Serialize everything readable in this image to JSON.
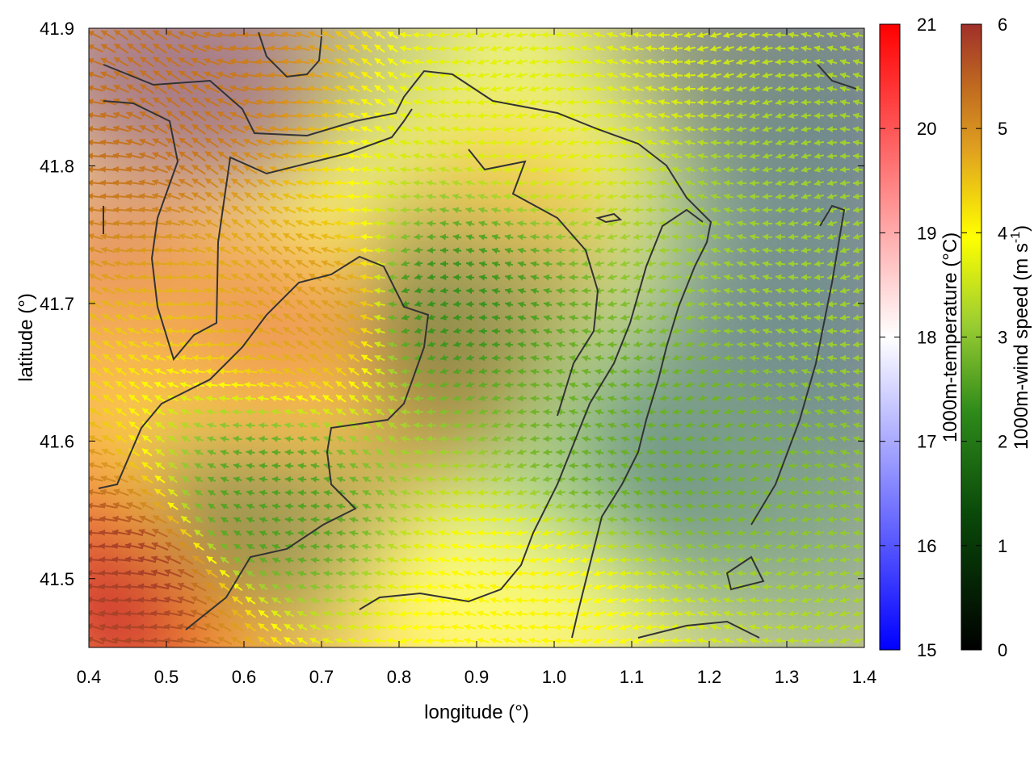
{
  "chart_data": {
    "type": "heatmap",
    "title": "",
    "xlabel": "longitude (°)",
    "ylabel": "latitude (°)",
    "xlim": [
      0.4,
      1.4
    ],
    "ylim": [
      41.45,
      41.9
    ],
    "x_ticks": [
      "0.4",
      "0.5",
      "0.6",
      "0.7",
      "0.8",
      "0.9",
      "1.0",
      "1.1",
      "1.2",
      "1.3",
      "1.4"
    ],
    "y_ticks": [
      "41.5",
      "41.6",
      "41.7",
      "41.8",
      "41.9"
    ],
    "grid": false,
    "temperature_colorbar": {
      "label": "1000m-temperature (°C)",
      "range": [
        15,
        21
      ],
      "ticks": [
        "15",
        "16",
        "17",
        "18",
        "19",
        "20",
        "21"
      ],
      "colors": [
        "#0000ff",
        "#ffffff",
        "#ff0000"
      ]
    },
    "wind_colorbar": {
      "label_main": "1000m-wind speed (m s",
      "label_sup": "-1",
      "label_end": ")",
      "range": [
        0,
        6
      ],
      "ticks": [
        "0",
        "1",
        "2",
        "3",
        "4",
        "5",
        "6"
      ],
      "colors": [
        "#000000",
        "#0a5a0a",
        "#2e8b1a",
        "#9acd32",
        "#ffff00",
        "#e0a020",
        "#c87820",
        "#a0302a"
      ]
    },
    "temperature_field": {
      "description_points": [
        {
          "lon": 0.42,
          "lat": 41.48,
          "temp": 20.3
        },
        {
          "lon": 0.55,
          "lat": 41.7,
          "temp": 19.2
        },
        {
          "lon": 0.7,
          "lat": 41.62,
          "temp": 19.3
        },
        {
          "lon": 0.85,
          "lat": 41.65,
          "temp": 19.6
        },
        {
          "lon": 0.95,
          "lat": 41.75,
          "temp": 19.2
        },
        {
          "lon": 1.0,
          "lat": 41.55,
          "temp": 17.9
        },
        {
          "lon": 1.2,
          "lat": 41.6,
          "temp": 16.5
        },
        {
          "lon": 1.35,
          "lat": 41.7,
          "temp": 15.8
        },
        {
          "lon": 1.37,
          "lat": 41.88,
          "temp": 15.6
        },
        {
          "lon": 0.65,
          "lat": 41.88,
          "temp": 16.5
        }
      ]
    },
    "wind_field": {
      "description_points": [
        {
          "lon": 0.45,
          "lat": 41.85,
          "speed": 5.2
        },
        {
          "lon": 0.45,
          "lat": 41.5,
          "speed": 5.8
        },
        {
          "lon": 0.62,
          "lat": 41.55,
          "speed": 2.0
        },
        {
          "lon": 0.85,
          "lat": 41.7,
          "speed": 1.8
        },
        {
          "lon": 1.1,
          "lat": 41.6,
          "speed": 2.2
        },
        {
          "lon": 1.3,
          "lat": 41.75,
          "speed": 2.6
        },
        {
          "lon": 0.7,
          "lat": 41.7,
          "speed": 4.3
        },
        {
          "lon": 1.0,
          "lat": 41.85,
          "speed": 3.2
        },
        {
          "lon": 0.95,
          "lat": 41.48,
          "speed": 3.5
        }
      ]
    }
  }
}
